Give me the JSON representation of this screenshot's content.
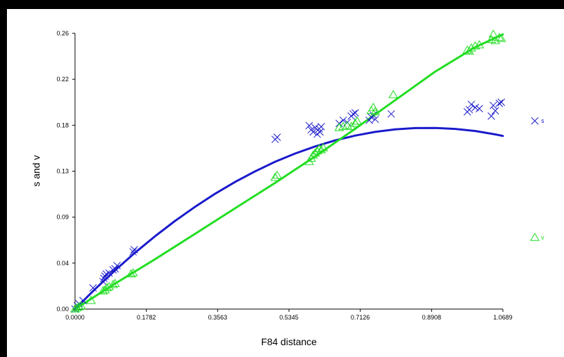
{
  "chart_data": {
    "type": "scatter",
    "xlabel": "F84 distance",
    "ylabel": "s and v",
    "xlim": [
      0.0,
      1.0689
    ],
    "ylim": [
      0.0,
      0.26
    ],
    "x_ticks": [
      "0.0000",
      "0.1782",
      "0.3563",
      "0.5345",
      "0.7126",
      "0.8908",
      "1.0689"
    ],
    "y_ticks": [
      "0.00",
      "0.04",
      "0.09",
      "0.13",
      "0.18",
      "0.22",
      "0.26"
    ],
    "legend_position": "right",
    "series": [
      {
        "name": "s",
        "color": "#1a1acc",
        "marker": "x",
        "points": [
          [
            0.0,
            0.0
          ],
          [
            0.006,
            0.003
          ],
          [
            0.01,
            0.005
          ],
          [
            0.02,
            0.008
          ],
          [
            0.045,
            0.02
          ],
          [
            0.07,
            0.026
          ],
          [
            0.072,
            0.029
          ],
          [
            0.075,
            0.031
          ],
          [
            0.078,
            0.033
          ],
          [
            0.085,
            0.034
          ],
          [
            0.095,
            0.037
          ],
          [
            0.1,
            0.038
          ],
          [
            0.105,
            0.041
          ],
          [
            0.145,
            0.054
          ],
          [
            0.148,
            0.056
          ],
          [
            0.5,
            0.16
          ],
          [
            0.505,
            0.162
          ],
          [
            0.585,
            0.173
          ],
          [
            0.59,
            0.169
          ],
          [
            0.595,
            0.167
          ],
          [
            0.6,
            0.171
          ],
          [
            0.605,
            0.165
          ],
          [
            0.61,
            0.17
          ],
          [
            0.612,
            0.167
          ],
          [
            0.615,
            0.172
          ],
          [
            0.66,
            0.175
          ],
          [
            0.67,
            0.178
          ],
          [
            0.68,
            0.176
          ],
          [
            0.69,
            0.182
          ],
          [
            0.695,
            0.184
          ],
          [
            0.7,
            0.185
          ],
          [
            0.735,
            0.178
          ],
          [
            0.74,
            0.181
          ],
          [
            0.745,
            0.183
          ],
          [
            0.75,
            0.179
          ],
          [
            0.79,
            0.184
          ],
          [
            0.98,
            0.186
          ],
          [
            0.985,
            0.188
          ],
          [
            0.99,
            0.193
          ],
          [
            1.0,
            0.19
          ],
          [
            1.01,
            0.189
          ],
          [
            1.04,
            0.182
          ],
          [
            1.045,
            0.192
          ],
          [
            1.05,
            0.187
          ],
          [
            1.06,
            0.194
          ],
          [
            1.065,
            0.195
          ]
        ],
        "fit": [
          [
            0.0,
            0.0
          ],
          [
            0.05,
            0.0188
          ],
          [
            0.1,
            0.0365
          ],
          [
            0.15,
            0.0532
          ],
          [
            0.2,
            0.0687
          ],
          [
            0.25,
            0.0832
          ],
          [
            0.3,
            0.0965
          ],
          [
            0.35,
            0.1088
          ],
          [
            0.4,
            0.1199
          ],
          [
            0.45,
            0.1299
          ],
          [
            0.5,
            0.1389
          ],
          [
            0.55,
            0.1467
          ],
          [
            0.6,
            0.1534
          ],
          [
            0.65,
            0.1591
          ],
          [
            0.7,
            0.1636
          ],
          [
            0.75,
            0.1671
          ],
          [
            0.8,
            0.1694
          ],
          [
            0.85,
            0.1707
          ],
          [
            0.9,
            0.1708
          ],
          [
            0.95,
            0.1699
          ],
          [
            1.0,
            0.1679
          ],
          [
            1.05,
            0.1647
          ],
          [
            1.0689,
            0.1633
          ]
        ]
      },
      {
        "name": "v",
        "color": "#22dd22",
        "marker": "triangle",
        "points": [
          [
            0.0,
            0.0
          ],
          [
            0.005,
            0.001
          ],
          [
            0.01,
            0.002
          ],
          [
            0.015,
            0.003
          ],
          [
            0.04,
            0.008
          ],
          [
            0.07,
            0.017
          ],
          [
            0.075,
            0.018
          ],
          [
            0.08,
            0.02
          ],
          [
            0.085,
            0.021
          ],
          [
            0.095,
            0.023
          ],
          [
            0.1,
            0.024
          ],
          [
            0.14,
            0.033
          ],
          [
            0.145,
            0.034
          ],
          [
            0.5,
            0.124
          ],
          [
            0.505,
            0.126
          ],
          [
            0.585,
            0.139
          ],
          [
            0.59,
            0.142
          ],
          [
            0.595,
            0.145
          ],
          [
            0.6,
            0.147
          ],
          [
            0.605,
            0.149
          ],
          [
            0.61,
            0.151
          ],
          [
            0.615,
            0.15
          ],
          [
            0.62,
            0.152
          ],
          [
            0.66,
            0.171
          ],
          [
            0.67,
            0.172
          ],
          [
            0.68,
            0.173
          ],
          [
            0.69,
            0.172
          ],
          [
            0.7,
            0.175
          ],
          [
            0.705,
            0.177
          ],
          [
            0.74,
            0.187
          ],
          [
            0.745,
            0.19
          ],
          [
            0.75,
            0.186
          ],
          [
            0.795,
            0.202
          ],
          [
            0.98,
            0.244
          ],
          [
            0.985,
            0.243
          ],
          [
            0.99,
            0.246
          ],
          [
            1.0,
            0.248
          ],
          [
            1.01,
            0.249
          ],
          [
            1.04,
            0.254
          ],
          [
            1.045,
            0.259
          ],
          [
            1.05,
            0.253
          ],
          [
            1.06,
            0.256
          ],
          [
            1.065,
            0.255
          ]
        ],
        "fit": [
          [
            0.0,
            0.0
          ],
          [
            0.1,
            0.024
          ],
          [
            0.2,
            0.047
          ],
          [
            0.3,
            0.071
          ],
          [
            0.4,
            0.095
          ],
          [
            0.5,
            0.119
          ],
          [
            0.6,
            0.144
          ],
          [
            0.7,
            0.17
          ],
          [
            0.8,
            0.197
          ],
          [
            0.9,
            0.224
          ],
          [
            1.0,
            0.247
          ],
          [
            1.0689,
            0.259
          ]
        ]
      }
    ]
  }
}
